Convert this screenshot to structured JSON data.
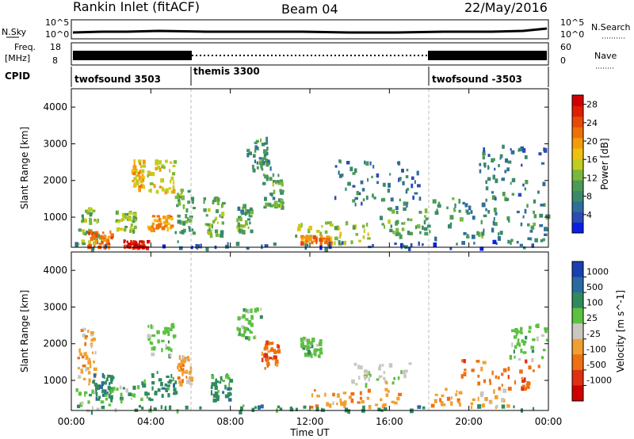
{
  "header": {
    "station": "Rankin Inlet (fitACF)",
    "beam": "Beam 04",
    "date": "22/May/2016"
  },
  "summary_panels": {
    "nsky": {
      "label": "N.Sky",
      "ticks": [
        "10^5",
        "10^0"
      ]
    },
    "nsearch": {
      "label": "N.Search",
      "ticks": [
        "10^5",
        "10^0"
      ]
    },
    "freq": {
      "label_line1": "Freq.",
      "label_line2": "[MHz]",
      "ticks": [
        "18",
        "8"
      ]
    },
    "nave": {
      "label": "Nave",
      "ticks": [
        "60",
        "0"
      ]
    },
    "cpid": {
      "label": "CPID",
      "segments": [
        {
          "name": "twofsound 3503",
          "start_hour": 0
        },
        {
          "name": "themis 3300",
          "start_hour": 6
        },
        {
          "name": "twofsound -3503",
          "start_hour": 18
        }
      ]
    }
  },
  "x_axis": {
    "title": "Time UT",
    "ticks": [
      "00:00",
      "04:00",
      "08:00",
      "12:00",
      "16:00",
      "20:00",
      "00:00"
    ]
  },
  "chart_data": [
    {
      "type": "heatmap",
      "panel": "power",
      "xlabel": "Time UT",
      "ylabel": "Slant Range [km]",
      "x_range_hours": [
        0,
        24
      ],
      "ylim": [
        180,
        4500
      ],
      "y_ticks": [
        "1000",
        "2000",
        "3000",
        "4000"
      ],
      "colorbar": {
        "label": "Power [dB]",
        "tick_labels": [
          "4",
          "8",
          "12",
          "16",
          "20",
          "24",
          "28"
        ],
        "range": [
          0,
          30
        ],
        "colors": [
          "#0a1ee6",
          "#2a4bb8",
          "#2f6e9a",
          "#3a8a6a",
          "#4d9a55",
          "#7ab83c",
          "#c0cc20",
          "#f0c010",
          "#f59a0a",
          "#f07008",
          "#e84a06",
          "#e01e04",
          "#d00000"
        ]
      },
      "regions": [
        {
          "t0": 0.2,
          "t1": 1.5,
          "r0": 150,
          "r1": 1300,
          "value": 12
        },
        {
          "t0": 0.8,
          "t1": 2.0,
          "r0": 200,
          "r1": 650,
          "value": 24
        },
        {
          "t0": 2.6,
          "t1": 3.8,
          "r0": 180,
          "r1": 400,
          "value": 28
        },
        {
          "t0": 2.2,
          "t1": 3.2,
          "r0": 650,
          "r1": 1200,
          "value": 14
        },
        {
          "t0": 3.0,
          "t1": 3.6,
          "r0": 1800,
          "r1": 2600,
          "value": 18
        },
        {
          "t0": 3.8,
          "t1": 5.2,
          "r0": 1700,
          "r1": 2600,
          "value": 16
        },
        {
          "t0": 3.8,
          "t1": 5.0,
          "r0": 700,
          "r1": 1100,
          "value": 20
        },
        {
          "t0": 5.2,
          "t1": 6.1,
          "r0": 600,
          "r1": 1800,
          "value": 10
        },
        {
          "t0": 6.6,
          "t1": 7.6,
          "r0": 500,
          "r1": 1600,
          "value": 12
        },
        {
          "t0": 8.8,
          "t1": 10.0,
          "r0": 2300,
          "r1": 3200,
          "value": 8
        },
        {
          "t0": 8.3,
          "t1": 9.0,
          "r0": 600,
          "r1": 1400,
          "value": 10
        },
        {
          "t0": 9.6,
          "t1": 10.6,
          "r0": 1300,
          "r1": 2200,
          "value": 10
        },
        {
          "t0": 11.0,
          "t1": 15.0,
          "r0": 300,
          "r1": 900,
          "value": 14
        },
        {
          "t0": 11.5,
          "t1": 13.0,
          "r0": 300,
          "r1": 520,
          "value": 22
        },
        {
          "t0": 13.0,
          "t1": 17.5,
          "r0": 1300,
          "r1": 2600,
          "value": 6
        },
        {
          "t0": 15.5,
          "t1": 18.0,
          "r0": 500,
          "r1": 1300,
          "value": 10
        },
        {
          "t0": 18.0,
          "t1": 24.0,
          "r0": 350,
          "r1": 1600,
          "value": 8
        },
        {
          "t0": 20.5,
          "t1": 23.8,
          "r0": 1500,
          "r1": 3000,
          "value": 6
        },
        {
          "t0": 0.0,
          "t1": 24.0,
          "r0": 180,
          "r1": 380,
          "value": 4
        }
      ]
    },
    {
      "type": "heatmap",
      "panel": "velocity",
      "xlabel": "Time UT",
      "ylabel": "Slant Range [km]",
      "x_range_hours": [
        0,
        24
      ],
      "ylim": [
        180,
        4500
      ],
      "y_ticks": [
        "1000",
        "2000",
        "3000",
        "4000"
      ],
      "colorbar": {
        "label": "Velocity [m s^-1]",
        "tick_labels": [
          "1000",
          "500",
          "100",
          "25",
          "-25",
          "-100",
          "-500",
          "-1000"
        ],
        "colors": [
          "#1a3fb0",
          "#2a6aa0",
          "#2f8a5e",
          "#5cc040",
          "#c8c8c0",
          "#f0a030",
          "#ee7010",
          "#e03010",
          "#d00000"
        ]
      },
      "regions": [
        {
          "t0": 0.3,
          "t1": 1.2,
          "r0": 900,
          "r1": 2500,
          "category": "-100"
        },
        {
          "t0": 0.2,
          "t1": 3.5,
          "r0": 200,
          "r1": 900,
          "category": "25"
        },
        {
          "t0": 1.0,
          "t1": 2.0,
          "r0": 500,
          "r1": 1200,
          "category": "100"
        },
        {
          "t0": 3.5,
          "t1": 5.2,
          "r0": 500,
          "r1": 1300,
          "category": "100"
        },
        {
          "t0": 3.8,
          "t1": 5.2,
          "r0": 1700,
          "r1": 2600,
          "category": "25"
        },
        {
          "t0": 5.3,
          "t1": 6.0,
          "r0": 900,
          "r1": 1700,
          "category": "-100"
        },
        {
          "t0": 8.3,
          "t1": 9.5,
          "r0": 2200,
          "r1": 3000,
          "category": "25"
        },
        {
          "t0": 9.5,
          "t1": 10.4,
          "r0": 1300,
          "r1": 2100,
          "category": "-500"
        },
        {
          "t0": 7.0,
          "t1": 8.0,
          "r0": 500,
          "r1": 1200,
          "category": "100"
        },
        {
          "t0": 11.5,
          "t1": 12.5,
          "r0": 1700,
          "r1": 2200,
          "category": "25"
        },
        {
          "t0": 12.0,
          "t1": 16.5,
          "r0": 300,
          "r1": 800,
          "category": "-100"
        },
        {
          "t0": 14.0,
          "t1": 17.0,
          "r0": 900,
          "r1": 1500,
          "category": "-25"
        },
        {
          "t0": 18.0,
          "t1": 22.0,
          "r0": 300,
          "r1": 800,
          "category": "-100"
        },
        {
          "t0": 19.5,
          "t1": 23.5,
          "r0": 800,
          "r1": 1600,
          "category": "-500"
        },
        {
          "t0": 22.0,
          "t1": 24.0,
          "r0": 1600,
          "r1": 2600,
          "category": "25"
        },
        {
          "t0": 0.0,
          "t1": 24.0,
          "r0": 180,
          "r1": 350,
          "category": "100"
        }
      ]
    }
  ]
}
